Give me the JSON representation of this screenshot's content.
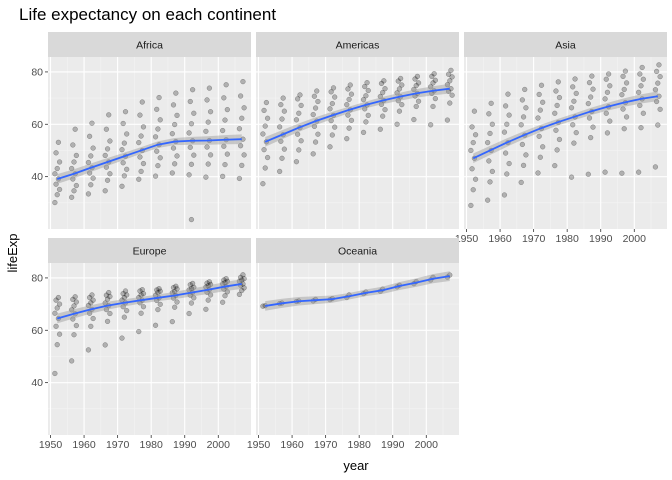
{
  "chart_data": {
    "type": "scatter",
    "title": "Life expectancy on each continent",
    "xlabel": "year",
    "ylabel": "lifeExp",
    "xlim": [
      1949.25,
      2009.75
    ],
    "ylim": [
      20.0,
      85.7
    ],
    "x_ticks": [
      1950,
      1960,
      1970,
      1980,
      1990,
      2000
    ],
    "y_ticks": [
      40,
      60,
      80
    ],
    "years": [
      1952,
      1957,
      1962,
      1967,
      1972,
      1977,
      1982,
      1987,
      1992,
      1997,
      2002,
      2007
    ],
    "layout": "facet_wrap, 3 columns",
    "colors": {
      "panel_bg": "#ebebeb",
      "grid_major": "#ffffff",
      "grid_minor": "#f4f4f4",
      "strip_bg": "#d9d9d9",
      "point": "#000000",
      "smooth_line": "#3366ff",
      "ribbon": "#999999",
      "tick_label": "#4d4d4d"
    },
    "panels": [
      {
        "name": "Africa",
        "smooth": [
          39.1,
          41.1,
          43.4,
          45.6,
          47.8,
          50.0,
          52.2,
          53.4,
          53.7,
          53.8,
          54.1,
          54.3
        ],
        "spread": [
          [
            -9.0,
            -6.0,
            -4.0,
            -2.0,
            0.0,
            2.0,
            4.0,
            6.5,
            10.0,
            14.0
          ],
          [
            -9.0,
            -6.5,
            -4.5,
            -2.0,
            0.0,
            2.0,
            4.5,
            7.0,
            11.0,
            17.0
          ],
          [
            -10.0,
            -6.5,
            -4.0,
            -2.0,
            0.0,
            2.0,
            4.5,
            7.5,
            12.0,
            17.0
          ],
          [
            -11.0,
            -7.0,
            -4.5,
            -2.0,
            0.0,
            2.5,
            5.0,
            8.0,
            12.5,
            18.0
          ],
          [
            -11.5,
            -7.5,
            -5.0,
            -2.5,
            0.0,
            2.5,
            5.0,
            8.5,
            12.5,
            17.0
          ],
          [
            -11.0,
            -8.0,
            -5.0,
            -2.5,
            0.0,
            3.0,
            5.5,
            9.0,
            13.5,
            18.5
          ],
          [
            -12.0,
            -8.0,
            -5.0,
            -2.5,
            0.0,
            3.0,
            6.0,
            9.5,
            13.5,
            18.0
          ],
          [
            -12.0,
            -8.5,
            -5.5,
            -2.5,
            0.0,
            3.0,
            6.5,
            10.0,
            14.0,
            18.5
          ],
          [
            -13.0,
            -9.0,
            -5.5,
            -2.5,
            0.0,
            3.0,
            6.5,
            10.5,
            15.0,
            19.5
          ],
          [
            -14.0,
            -9.0,
            -5.5,
            -2.5,
            0.0,
            3.5,
            7.0,
            11.0,
            15.5,
            20.0
          ],
          [
            -14.0,
            -9.5,
            -5.5,
            -2.5,
            0.0,
            3.5,
            7.5,
            11.5,
            16.0,
            21.0
          ],
          [
            -15.0,
            -10.0,
            -6.0,
            -2.5,
            0.0,
            4.0,
            8.0,
            12.0,
            16.5,
            22.0
          ]
        ],
        "outliers": [
          [
            1992,
            23.6
          ]
        ]
      },
      {
        "name": "Americas",
        "smooth": [
          53.3,
          56.0,
          58.7,
          61.2,
          63.4,
          65.5,
          67.4,
          69.1,
          70.5,
          71.8,
          72.8,
          73.6
        ],
        "spread": [
          [
            -16.0,
            -10.0,
            -6.0,
            -3.0,
            0.0,
            3.0,
            6.0,
            9.0,
            12.0,
            15.0
          ],
          [
            -14.0,
            -9.0,
            -5.5,
            -2.5,
            0.0,
            3.0,
            6.0,
            9.0,
            11.5,
            14.0
          ],
          [
            -13.0,
            -8.5,
            -5.0,
            -2.5,
            0.0,
            3.0,
            5.5,
            8.5,
            11.0,
            12.5
          ],
          [
            -12.5,
            -8.0,
            -5.0,
            -2.0,
            0.0,
            2.5,
            5.0,
            7.5,
            9.5,
            11.5
          ],
          [
            -12.0,
            -7.5,
            -4.5,
            -2.0,
            0.0,
            2.5,
            4.5,
            7.0,
            9.0,
            10.5
          ],
          [
            -11.0,
            -7.0,
            -4.0,
            -2.0,
            0.0,
            2.0,
            4.0,
            6.0,
            8.0,
            9.5
          ],
          [
            -10.5,
            -6.5,
            -4.0,
            -1.5,
            0.0,
            2.0,
            3.5,
            5.5,
            7.0,
            8.5
          ],
          [
            -11.0,
            -6.0,
            -3.5,
            -1.5,
            0.0,
            1.5,
            3.0,
            4.5,
            6.5,
            7.5
          ],
          [
            -10.5,
            -5.5,
            -3.0,
            -1.5,
            0.0,
            1.5,
            3.0,
            4.5,
            6.0,
            7.0
          ],
          [
            -10.0,
            -5.0,
            -3.0,
            -1.0,
            0.0,
            1.5,
            3.0,
            4.0,
            5.5,
            6.5
          ],
          [
            -13.0,
            -6.0,
            -3.0,
            -1.0,
            0.0,
            1.5,
            3.0,
            4.0,
            5.5,
            6.5
          ],
          [
            -12.0,
            -5.5,
            -2.5,
            -1.0,
            0.0,
            1.5,
            3.0,
            4.5,
            5.5,
            7.0
          ]
        ],
        "outliers": []
      },
      {
        "name": "Asia",
        "smooth": [
          47.0,
          50.0,
          53.0,
          55.8,
          58.4,
          60.7,
          62.8,
          64.9,
          66.7,
          68.3,
          69.7,
          70.7
        ],
        "spread": [
          [
            -18.0,
            -12.0,
            -8.0,
            -4.0,
            0.0,
            3.0,
            6.0,
            9.0,
            12.0,
            18.0
          ],
          [
            -19.0,
            -12.0,
            -8.0,
            -4.0,
            0.0,
            3.0,
            6.5,
            10.0,
            14.0,
            18.0
          ],
          [
            -20.0,
            -12.0,
            -8.0,
            -4.0,
            0.0,
            4.0,
            7.0,
            10.5,
            14.0,
            18.5
          ],
          [
            -18.0,
            -11.5,
            -7.5,
            -3.5,
            0.0,
            4.0,
            7.0,
            10.5,
            13.5,
            17.5
          ],
          [
            -17.0,
            -11.0,
            -7.0,
            -3.0,
            0.0,
            4.0,
            7.0,
            10.0,
            13.0,
            16.5
          ],
          [
            -16.5,
            -10.5,
            -6.5,
            -3.0,
            0.0,
            3.5,
            6.5,
            9.5,
            12.0,
            15.5
          ],
          [
            -23.0,
            -10.0,
            -6.0,
            -3.0,
            0.0,
            3.5,
            6.0,
            9.0,
            11.5,
            14.5
          ],
          [
            -24.0,
            -10.0,
            -6.0,
            -2.5,
            0.0,
            3.0,
            5.5,
            8.5,
            11.0,
            13.5
          ],
          [
            -25.0,
            -10.0,
            -5.5,
            -2.5,
            0.0,
            3.0,
            5.5,
            8.0,
            10.5,
            12.5
          ],
          [
            -27.0,
            -10.0,
            -5.5,
            -2.5,
            0.0,
            3.0,
            5.0,
            7.5,
            10.0,
            12.0
          ],
          [
            -28.0,
            -11.0,
            -5.5,
            -2.5,
            0.0,
            2.5,
            5.0,
            7.5,
            9.5,
            12.0
          ],
          [
            -27.0,
            -11.0,
            -5.0,
            -2.0,
            0.0,
            2.5,
            5.0,
            7.5,
            9.5,
            12.0
          ]
        ],
        "outliers": []
      },
      {
        "name": "Europe",
        "smooth": [
          64.5,
          66.3,
          68.0,
          69.4,
          70.5,
          71.5,
          72.4,
          73.3,
          74.4,
          75.5,
          76.7,
          77.7
        ],
        "spread": [
          [
            -21.0,
            -10.0,
            -6.0,
            -3.0,
            0.0,
            2.0,
            4.0,
            5.5,
            7.0,
            8.0
          ],
          [
            -18.0,
            -8.0,
            -4.5,
            -2.0,
            0.0,
            1.5,
            3.0,
            4.5,
            5.5,
            6.5
          ],
          [
            -15.5,
            -6.5,
            -3.5,
            -1.5,
            0.0,
            1.5,
            2.5,
            3.5,
            4.5,
            5.5
          ],
          [
            -15.0,
            -6.0,
            -3.0,
            -1.5,
            0.0,
            1.0,
            2.5,
            3.5,
            4.0,
            5.0
          ],
          [
            -13.5,
            -5.5,
            -3.0,
            -1.5,
            0.0,
            1.0,
            2.0,
            3.0,
            3.5,
            4.5
          ],
          [
            -12.0,
            -5.0,
            -2.5,
            -1.0,
            0.0,
            1.0,
            2.0,
            2.5,
            3.5,
            4.0
          ],
          [
            -10.5,
            -4.5,
            -2.5,
            -1.0,
            0.0,
            1.0,
            2.0,
            2.5,
            3.0,
            3.5
          ],
          [
            -10.0,
            -4.5,
            -2.5,
            -1.0,
            0.0,
            1.0,
            1.5,
            2.5,
            3.0,
            3.5
          ],
          [
            -8.0,
            -4.0,
            -2.0,
            -1.0,
            0.0,
            1.0,
            1.5,
            2.0,
            3.0,
            3.5
          ],
          [
            -7.5,
            -4.0,
            -2.0,
            -1.0,
            0.0,
            1.0,
            1.5,
            2.0,
            2.5,
            3.0
          ],
          [
            -6.0,
            -3.5,
            -2.0,
            -1.0,
            0.0,
            1.0,
            1.5,
            2.0,
            2.5,
            3.0
          ],
          [
            -4.0,
            -2.5,
            -1.5,
            -0.5,
            0.0,
            1.0,
            1.5,
            2.0,
            2.5,
            3.5
          ]
        ],
        "outliers": []
      },
      {
        "name": "Oceania",
        "smooth": [
          69.3,
          70.3,
          71.1,
          71.5,
          71.9,
          73.0,
          74.3,
          75.3,
          76.9,
          78.2,
          79.7,
          80.7
        ],
        "spread": [
          [
            -0.1,
            0.1
          ],
          [
            -0.1,
            0.1
          ],
          [
            -0.1,
            0.1
          ],
          [
            -0.3,
            0.3
          ],
          [
            -0.2,
            0.2
          ],
          [
            -0.5,
            0.5
          ],
          [
            -0.3,
            0.3
          ],
          [
            -0.4,
            0.4
          ],
          [
            -0.3,
            0.3
          ],
          [
            -0.4,
            0.4
          ],
          [
            -0.5,
            0.5
          ],
          [
            -0.4,
            0.4
          ]
        ],
        "outliers": []
      }
    ]
  }
}
